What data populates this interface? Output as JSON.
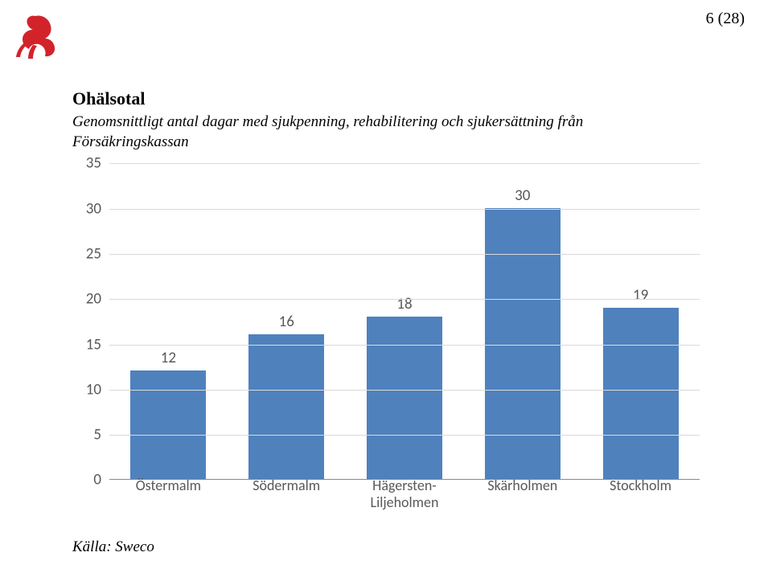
{
  "page_number": "6 (28)",
  "chart": {
    "type": "bar",
    "title": "Ohälsotal",
    "subtitle": "Genomsnittligt antal dagar med sjukpenning, rehabilitering och sjukersättning från Försäkringskassan",
    "categories": [
      "Östermalm",
      "Södermalm",
      "Hägersten-\nLiljeholmen",
      "Skärholmen",
      "Stockholm"
    ],
    "values": [
      12,
      16,
      18,
      30,
      19
    ],
    "bar_color": "#4f81bd",
    "ylim": [
      0,
      35
    ],
    "ytick_step": 5,
    "yticks": [
      0,
      5,
      10,
      15,
      20,
      25,
      30,
      35
    ],
    "grid_color": "#d9d9d9",
    "background_color": "#ffffff",
    "label_fontsize": 19,
    "label_color": "#595959",
    "title_fontsize": 22,
    "subtitle_fontsize": 19,
    "bar_width": 0.64
  },
  "source": "Källa: Sweco",
  "logo": {
    "color": "#d2232a",
    "name": "rose-emblem"
  }
}
